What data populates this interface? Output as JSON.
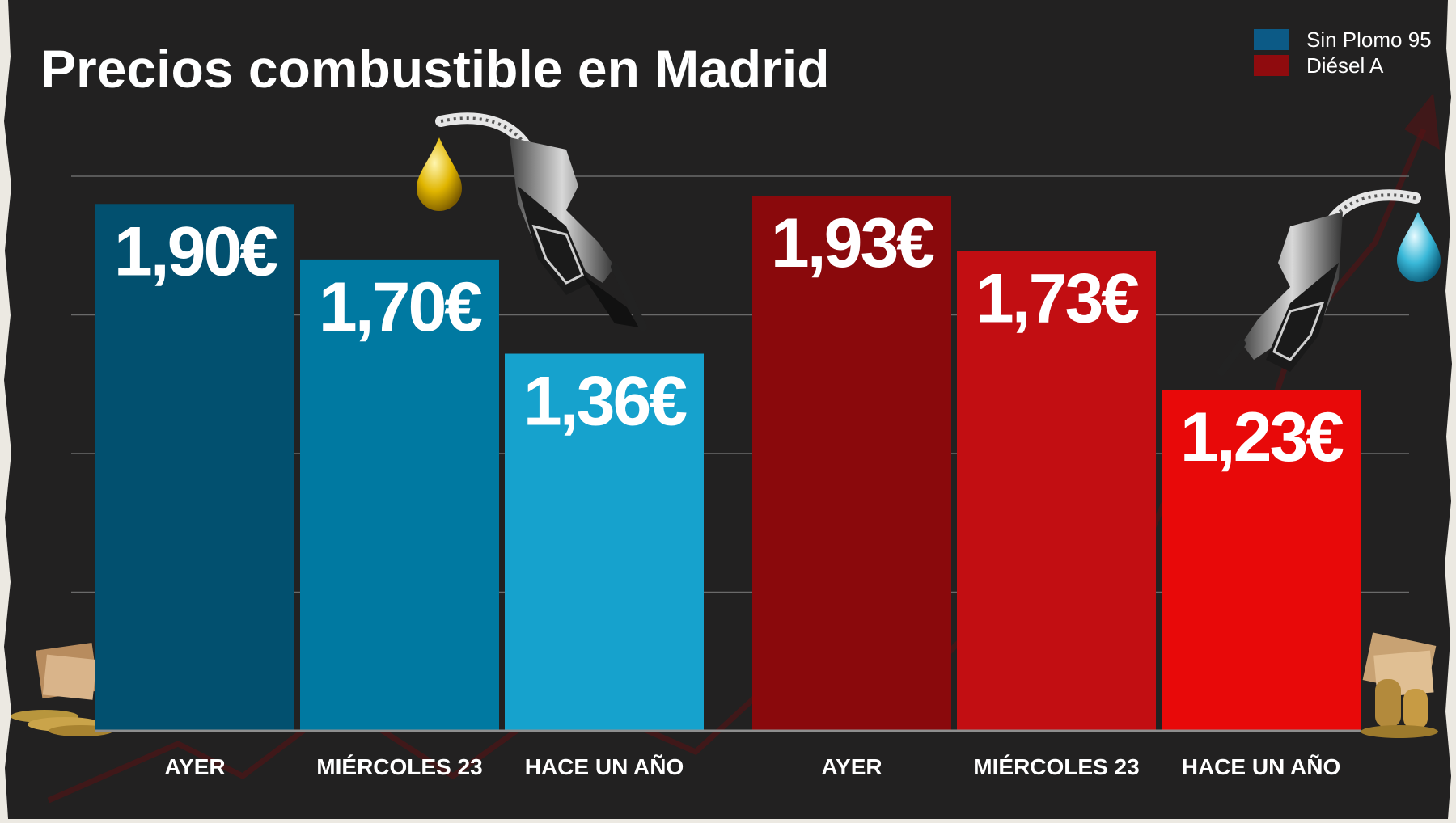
{
  "chart_data": {
    "type": "bar",
    "title": "Precios combustible en Madrid",
    "xlabel": "",
    "ylabel": "",
    "ylim": [
      0,
      2.0
    ],
    "grid": true,
    "legend_position": "top-right",
    "legend": [
      {
        "label": "Sin Plomo 95",
        "color": "#0c5a86"
      },
      {
        "label": "Diésel A",
        "color": "#8f0b0e"
      }
    ],
    "groups": [
      {
        "series": "Sin Plomo 95",
        "bars": [
          {
            "category": "AYER",
            "value": 1.9,
            "label": "1,90€",
            "color": "#02506f"
          },
          {
            "category": "MIÉRCOLES 23",
            "value": 1.7,
            "label": "1,70€",
            "color": "#0079a1"
          },
          {
            "category": "HACE UN AÑO",
            "value": 1.36,
            "label": "1,36€",
            "color": "#16a2cd"
          }
        ]
      },
      {
        "series": "Diésel A",
        "bars": [
          {
            "category": "AYER",
            "value": 1.93,
            "label": "1,93€",
            "color": "#8a090c"
          },
          {
            "category": "MIÉRCOLES 23",
            "value": 1.73,
            "label": "1,73€",
            "color": "#c20e12"
          },
          {
            "category": "HACE UN AÑO",
            "value": 1.23,
            "label": "1,23€",
            "color": "#e80909"
          }
        ]
      }
    ]
  }
}
